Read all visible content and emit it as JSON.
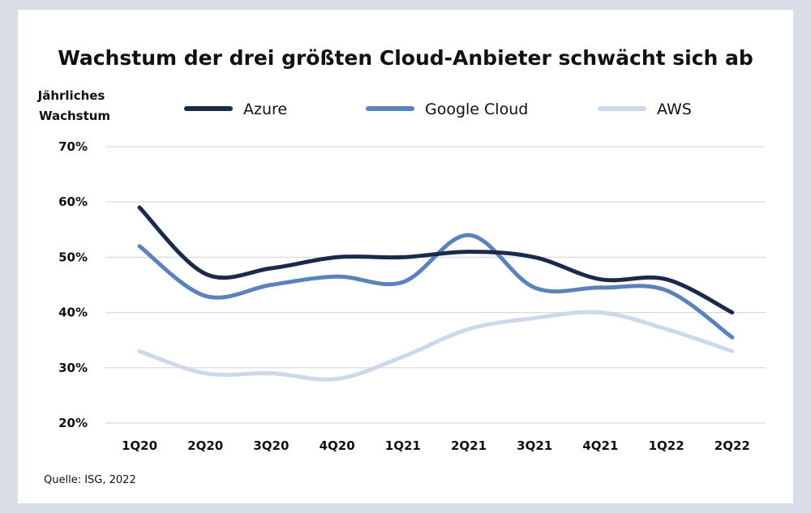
{
  "chart_data": {
    "type": "line",
    "title": "Wachstum der drei größten Cloud-Anbieter schwächt sich ab",
    "ylabel": [
      "Jährliches",
      "Wachstum"
    ],
    "xlabel": "",
    "categories": [
      "1Q20",
      "2Q20",
      "3Q20",
      "4Q20",
      "1Q21",
      "2Q21",
      "3Q21",
      "4Q21",
      "1Q22",
      "2Q22"
    ],
    "ylim": [
      20,
      70
    ],
    "yticks": [
      20,
      30,
      40,
      50,
      60,
      70
    ],
    "ytick_labels": [
      "20%",
      "30%",
      "40%",
      "50%",
      "60%",
      "70%"
    ],
    "grid": true,
    "legend_position": "top",
    "series": [
      {
        "name": "Azure",
        "color": "#1b2a4a",
        "values": [
          59,
          47,
          48,
          50,
          50,
          51,
          50,
          46,
          46,
          40
        ]
      },
      {
        "name": "Google Cloud",
        "color": "#5b82bd",
        "values": [
          52,
          43,
          45,
          46.5,
          45.5,
          54,
          44.5,
          44.5,
          44,
          35.5
        ]
      },
      {
        "name": "AWS",
        "color": "#cdd8ea",
        "values": [
          33,
          29,
          29,
          28,
          32,
          37,
          39,
          40,
          37,
          33
        ]
      }
    ],
    "source": "Quelle: ISG, 2022"
  }
}
